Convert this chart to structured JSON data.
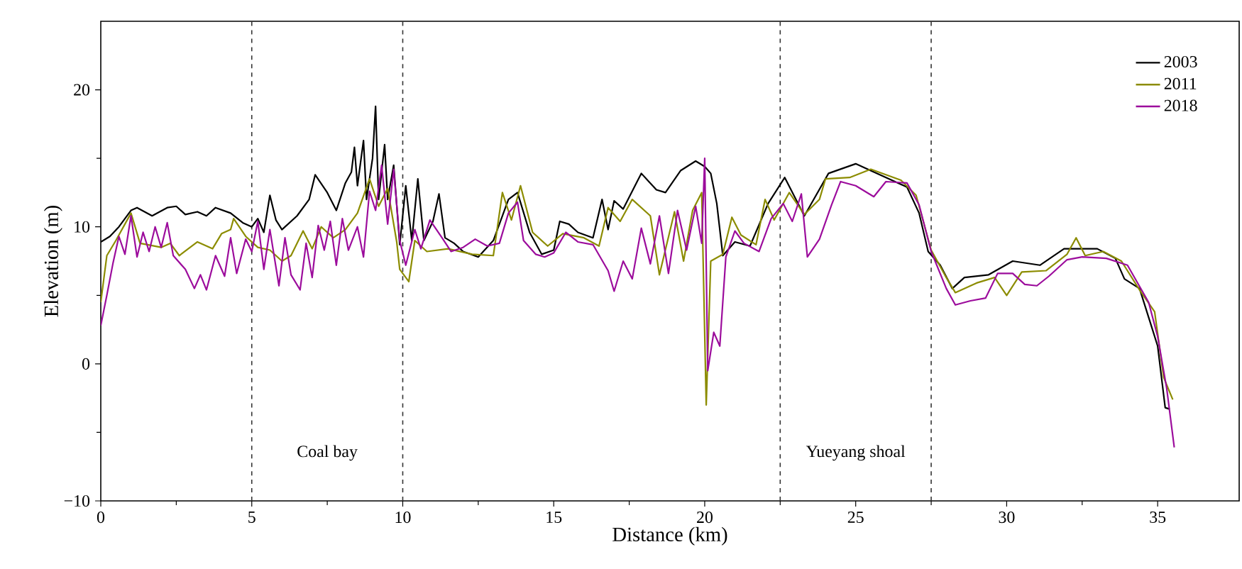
{
  "chart_data": {
    "type": "line",
    "xlabel": "Distance (km)",
    "ylabel": "Elevation (m)",
    "xlim": [
      0,
      37.7
    ],
    "ylim": [
      -10,
      25
    ],
    "xticks": [
      0,
      5,
      10,
      15,
      20,
      25,
      30,
      35
    ],
    "yticks": [
      {
        "value": -10,
        "label": "−10"
      },
      0,
      10,
      20
    ],
    "legend": "top right",
    "grid": false,
    "marker": "none",
    "line_style": "solid",
    "series": [
      {
        "name": "2003",
        "color": "#000000",
        "x": [
          0,
          0.3,
          0.6,
          1.0,
          1.2,
          1.7,
          2.2,
          2.5,
          2.8,
          3.2,
          3.5,
          3.8,
          4.3,
          4.7,
          5,
          5.2,
          5.4,
          5.6,
          5.8,
          6.0,
          6.5,
          6.9,
          7.1,
          7.5,
          7.8,
          8.1,
          8.3,
          8.4,
          8.5,
          8.7,
          8.8,
          9.0,
          9.1,
          9.2,
          9.4,
          9.5,
          9.7,
          9.9,
          10.1,
          10.3,
          10.5,
          10.7,
          11.0,
          11.2,
          11.4,
          11.7,
          12.0,
          12.5,
          13.0,
          13.5,
          13.8,
          14.2,
          14.6,
          15,
          15.2,
          15.5,
          15.8,
          16.3,
          16.6,
          16.8,
          17.0,
          17.3,
          17.9,
          18.4,
          18.7,
          19.2,
          19.7,
          20.0,
          20.2,
          20.4,
          20.6,
          21.0,
          21.5,
          22.1,
          22.65,
          23.3,
          24.1,
          25.0,
          25.5,
          26.7,
          27.1,
          27.4,
          27.8,
          28.2,
          28.6,
          29.4,
          30.2,
          31.1,
          31.9,
          33.0,
          33.6,
          33.9,
          34.4,
          34.8,
          35.0,
          35.25,
          35.4
        ],
        "values": [
          8.9,
          9.3,
          10,
          11.2,
          11.4,
          10.8,
          11.4,
          11.5,
          10.9,
          11.1,
          10.8,
          11.4,
          11,
          10.3,
          10,
          10.6,
          9.6,
          12.3,
          10.5,
          9.8,
          10.8,
          12,
          13.8,
          12.5,
          11.2,
          13.2,
          14,
          15.8,
          13,
          16.3,
          12,
          15,
          18.8,
          12,
          16,
          12,
          14.5,
          8.7,
          13,
          9,
          13.5,
          9,
          10.4,
          12.4,
          9.2,
          8.8,
          8.2,
          7.8,
          9,
          12,
          12.5,
          9.6,
          8,
          8.3,
          10.4,
          10.2,
          9.6,
          9.2,
          12,
          9.8,
          11.9,
          11.3,
          13.9,
          12.7,
          12.5,
          14.1,
          14.8,
          14.4,
          13.9,
          11.7,
          7.9,
          8.9,
          8.6,
          11.7,
          13.6,
          10.8,
          13.9,
          14.6,
          14.1,
          12.9,
          11,
          8.2,
          7.2,
          5.5,
          6.3,
          6.5,
          7.5,
          7.2,
          8.4,
          8.4,
          7.7,
          6.2,
          5.5,
          2.7,
          1.3,
          -3.2,
          -3.3
        ]
      },
      {
        "name": "2011",
        "color": "#8c8c00",
        "x": [
          0,
          0.2,
          0.5,
          1.0,
          1.3,
          2.0,
          2.3,
          2.6,
          3.2,
          3.7,
          4.0,
          4.3,
          4.4,
          4.8,
          5.2,
          5.6,
          6.0,
          6.3,
          6.7,
          7.0,
          7.3,
          7.7,
          8.1,
          8.5,
          8.9,
          9.2,
          9.5,
          9.8,
          9.9,
          10.2,
          10.4,
          10.8,
          11.5,
          12.3,
          13.0,
          13.3,
          13.6,
          13.9,
          14.3,
          14.8,
          15.3,
          16.0,
          16.5,
          16.8,
          17.2,
          17.6,
          18.2,
          18.5,
          19.0,
          19.3,
          19.6,
          19.9,
          20.05,
          20.2,
          20.6,
          20.9,
          21.2,
          21.7,
          22.0,
          22.3,
          22.8,
          23.3,
          23.8,
          24.0,
          24.8,
          25.5,
          26.5,
          27.0,
          27.5,
          28.0,
          28.3,
          29.0,
          29.6,
          30.0,
          30.5,
          31.3,
          32.0,
          32.3,
          32.6,
          33.2,
          33.8,
          34.4,
          34.9,
          35.2,
          35.5
        ],
        "values": [
          4.5,
          7.9,
          9,
          11,
          8.8,
          8.5,
          8.8,
          7.9,
          8.9,
          8.4,
          9.5,
          9.8,
          10.6,
          9.3,
          8.5,
          8.3,
          7.5,
          7.9,
          9.7,
          8.4,
          10,
          9.2,
          9.8,
          11,
          13.5,
          11.5,
          12.8,
          8.9,
          6.9,
          6.0,
          9,
          8.2,
          8.4,
          8,
          7.9,
          12.5,
          10.5,
          13,
          9.6,
          8.6,
          9.5,
          9.2,
          8.6,
          11.4,
          10.4,
          12,
          10.8,
          6.5,
          11.1,
          7.5,
          11.2,
          12.5,
          -3,
          7.5,
          8.0,
          10.7,
          9.4,
          8.7,
          12,
          10.5,
          12.5,
          10.9,
          12,
          13.5,
          13.6,
          14.2,
          13.4,
          12.3,
          8.3,
          6.3,
          5.2,
          5.9,
          6.3,
          5.0,
          6.7,
          6.8,
          8,
          9.2,
          7.9,
          8.2,
          7.5,
          5.4,
          3.8,
          -1,
          -2.6
        ]
      },
      {
        "name": "2018",
        "color": "#9c0c9c",
        "x": [
          0,
          0.2,
          0.4,
          0.6,
          0.8,
          1.0,
          1.2,
          1.4,
          1.6,
          1.8,
          2.0,
          2.2,
          2.4,
          2.8,
          3.1,
          3.3,
          3.5,
          3.8,
          4.1,
          4.3,
          4.5,
          4.8,
          5.0,
          5.2,
          5.4,
          5.6,
          5.9,
          6.1,
          6.3,
          6.6,
          6.8,
          7.0,
          7.2,
          7.4,
          7.6,
          7.8,
          8.0,
          8.2,
          8.5,
          8.7,
          8.9,
          9.1,
          9.3,
          9.5,
          9.7,
          9.9,
          10.1,
          10.4,
          10.6,
          10.9,
          11.3,
          11.6,
          12.0,
          12.4,
          12.8,
          13.2,
          13.5,
          13.8,
          14.0,
          14.4,
          14.7,
          15.0,
          15.4,
          15.8,
          16.3,
          16.8,
          17.0,
          17.3,
          17.6,
          17.9,
          18.2,
          18.5,
          18.8,
          19.1,
          19.4,
          19.7,
          19.9,
          20.0,
          20.1,
          20.3,
          20.5,
          20.7,
          21.0,
          21.3,
          21.8,
          22.2,
          22.6,
          22.9,
          23.2,
          23.4,
          23.8,
          24.2,
          24.5,
          25.0,
          25.6,
          26.0,
          26.7,
          27.1,
          27.5,
          28.0,
          28.3,
          28.8,
          29.3,
          29.7,
          30.2,
          30.6,
          31.0,
          31.4,
          32.0,
          32.5,
          33.3,
          34.0,
          34.7,
          35.0,
          35.3,
          35.55
        ],
        "values": [
          2.8,
          5,
          7.3,
          9.3,
          8,
          10.8,
          7.8,
          9.6,
          8.2,
          10,
          8.5,
          10.3,
          7.9,
          6.9,
          5.5,
          6.5,
          5.4,
          7.9,
          6.4,
          9.2,
          6.6,
          9.1,
          8.2,
          10.4,
          6.9,
          9.8,
          5.7,
          9.2,
          6.5,
          5.4,
          8.8,
          6.3,
          10.1,
          8.3,
          10.4,
          7.2,
          10.6,
          8.3,
          10,
          7.8,
          12.6,
          11.2,
          14.5,
          10.2,
          14.2,
          9,
          7.2,
          9.8,
          8.4,
          10.5,
          9.2,
          8.2,
          8.5,
          9.1,
          8.6,
          8.8,
          11,
          11.8,
          9,
          8,
          7.8,
          8.1,
          9.6,
          8.9,
          8.7,
          6.8,
          5.3,
          7.5,
          6.2,
          9.9,
          7.3,
          10.8,
          6.6,
          11.2,
          8.3,
          11.5,
          8.8,
          15,
          -0.5,
          2.3,
          1.3,
          7.8,
          9.7,
          8.8,
          8.2,
          10.6,
          11.7,
          10.4,
          12.4,
          7.8,
          9.1,
          11.6,
          13.3,
          13,
          12.2,
          13.3,
          13.2,
          11.6,
          8.2,
          5.5,
          4.3,
          4.6,
          4.8,
          6.6,
          6.6,
          5.8,
          5.7,
          6.4,
          7.6,
          7.8,
          7.7,
          7.2,
          4.5,
          2,
          -1.8,
          -6.1
        ]
      }
    ],
    "ref_lines": [
      {
        "axis": "x",
        "value": 5,
        "line_style": "dashed",
        "color": "#333333"
      },
      {
        "axis": "x",
        "value": 10,
        "line_style": "dashed",
        "color": "#333333"
      },
      {
        "axis": "x",
        "value": 22.5,
        "line_style": "dashed",
        "color": "#333333"
      },
      {
        "axis": "x",
        "value": 27.5,
        "line_style": "dashed",
        "color": "#333333"
      }
    ],
    "annotations": [
      "Coal bay",
      "Yueyang shoal"
    ]
  }
}
